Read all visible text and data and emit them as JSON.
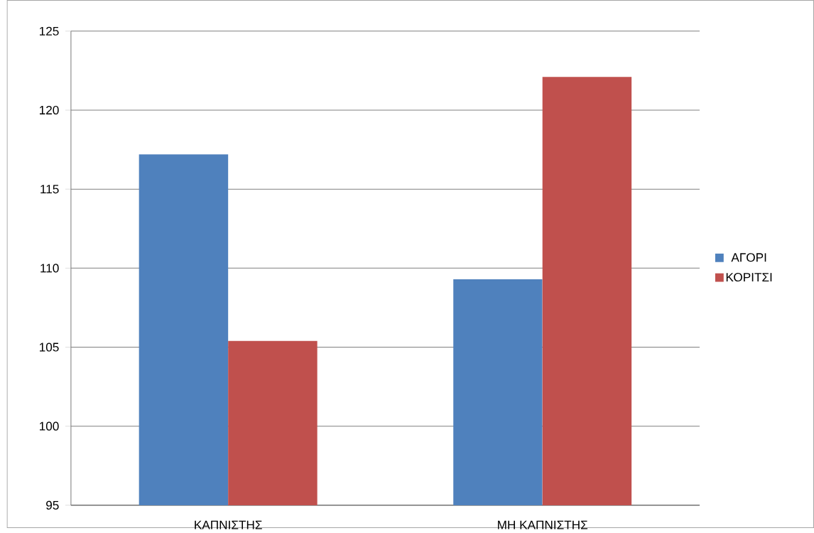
{
  "chart_data": {
    "type": "bar",
    "categories": [
      "ΚΑΠΝΙΣΤΗΣ",
      "ΜΗ ΚΑΠΝΙΣΤΗΣ"
    ],
    "series": [
      {
        "name": "ΑΓΟΡΙ",
        "color": "#4f81bd",
        "values": [
          117.2,
          109.3
        ]
      },
      {
        "name": "ΚΟΡΙΤΣΙ",
        "color": "#c0504d",
        "values": [
          105.4,
          122.1
        ]
      }
    ],
    "ylim": [
      95,
      125
    ],
    "yticks": [
      95,
      100,
      105,
      110,
      115,
      120,
      125
    ],
    "grid": "y",
    "legend": "right"
  }
}
